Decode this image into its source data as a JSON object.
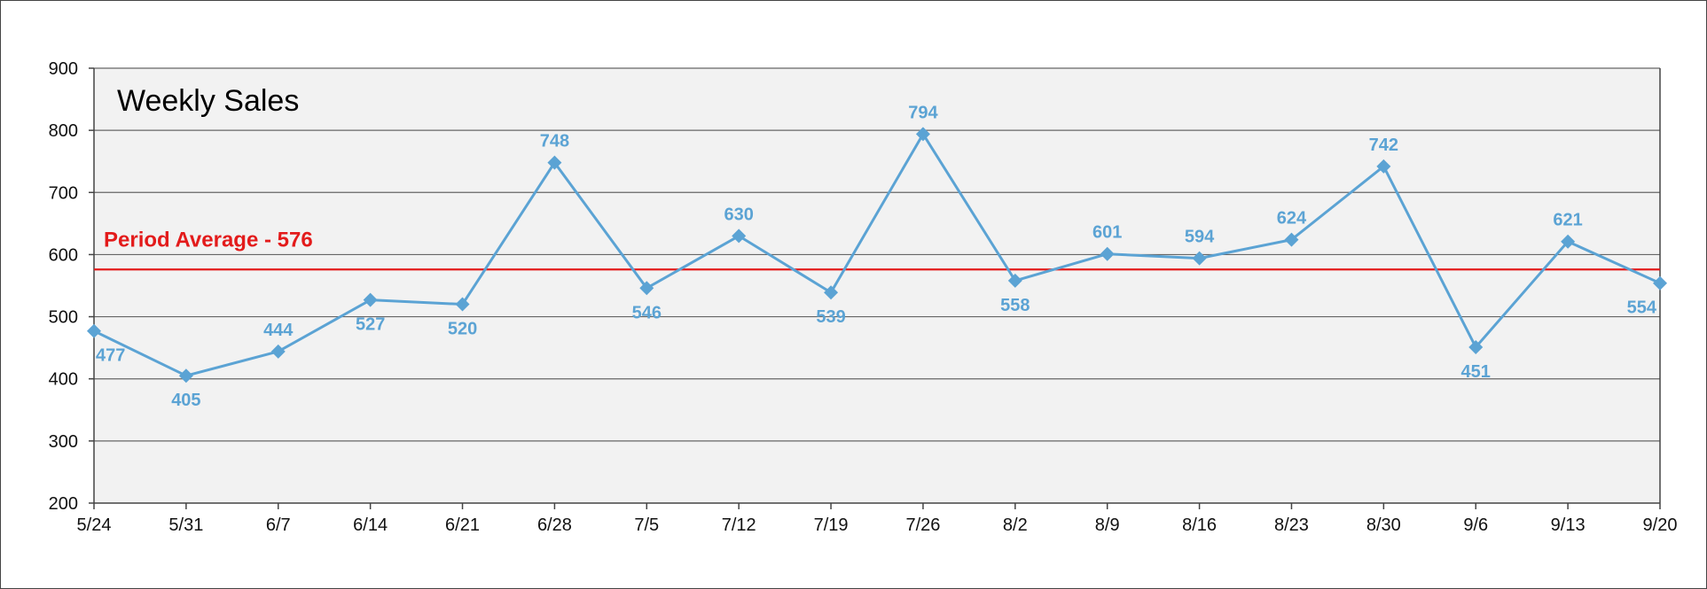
{
  "chart_data": {
    "type": "line",
    "title": "Weekly Sales",
    "categories": [
      "5/24",
      "5/31",
      "6/7",
      "6/14",
      "6/21",
      "6/28",
      "7/5",
      "7/12",
      "7/19",
      "7/26",
      "8/2",
      "8/9",
      "8/16",
      "8/23",
      "8/30",
      "9/6",
      "9/13",
      "9/20"
    ],
    "series": [
      {
        "values": [
          477,
          405,
          444,
          527,
          520,
          748,
          546,
          630,
          539,
          794,
          558,
          601,
          594,
          624,
          742,
          451,
          621,
          554
        ],
        "color": "#5ba3d4",
        "marker": "diamond"
      }
    ],
    "data_labels": [
      "477",
      "405",
      "444",
      "527",
      "520",
      "748",
      "546",
      "630",
      "539",
      "794",
      "558",
      "601",
      "594",
      "624",
      "742",
      "451",
      "621",
      "554"
    ],
    "data_label_placement": [
      "below",
      "below",
      "above",
      "below",
      "below",
      "above",
      "below",
      "above",
      "below",
      "above",
      "below",
      "above",
      "above",
      "above",
      "above",
      "below",
      "above",
      "below"
    ],
    "reference_line": {
      "label": "Period Average - 576",
      "value": 576,
      "color": "#e31b1b"
    },
    "ylim": [
      200,
      900
    ],
    "yticks": [
      200,
      300,
      400,
      500,
      600,
      700,
      800,
      900
    ],
    "ytick_labels": [
      "200",
      "300",
      "400",
      "500",
      "600",
      "700",
      "800",
      "900"
    ],
    "xlabel": "",
    "ylabel": "",
    "grid": true,
    "plot_background": "#f2f2f2",
    "grid_color": "#666666"
  }
}
